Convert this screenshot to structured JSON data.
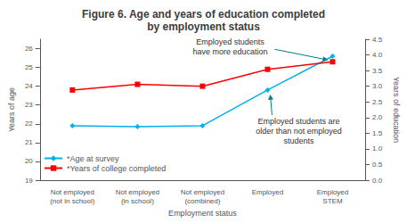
{
  "chart_data": {
    "type": "line",
    "title": "Figure 6. Age and years of education completed\nby employment status",
    "xlabel": "Employment status",
    "ylabel": "Years of age",
    "y2label": "Years of education",
    "categories": [
      "Not employed\n(not in school)",
      "Not employed\n(in school)",
      "Not employed\n(combined)",
      "Employed",
      "Employed\nSTEM"
    ],
    "series": [
      {
        "name": "*Age at survey",
        "color": "#00B0F0",
        "marker": "diamond",
        "values": [
          21.9,
          21.85,
          21.9,
          23.8,
          25.6
        ]
      },
      {
        "name": "*Years of college completed",
        "color": "#FF0000",
        "marker": "square",
        "values": [
          23.8,
          24.1,
          24.0,
          24.9,
          25.3
        ]
      }
    ],
    "ylim": [
      19.0,
      26.5
    ],
    "yticks": [
      19,
      20,
      21,
      22,
      23,
      24,
      25,
      26
    ],
    "y2lim": [
      0.0,
      4.5
    ],
    "y2ticks": [
      {
        "value": 0,
        "label": "0.0"
      },
      0.5,
      {
        "value": 1,
        "label": "1.0"
      },
      1.5,
      {
        "value": 2,
        "label": "2.0"
      },
      2.5,
      {
        "value": 3,
        "label": "3.0"
      },
      3.5,
      {
        "value": 4,
        "label": "4.0"
      },
      4.5
    ],
    "grid": false,
    "legend": "lower left",
    "annotations": [
      {
        "text": "Employed students\nhave more education",
        "series": "*Years of college completed",
        "category": "Employed\nSTEM"
      },
      {
        "text": "Employed students are\nolder than not employed\nstudents",
        "series": "*Age at survey",
        "category": "Employed"
      }
    ]
  }
}
